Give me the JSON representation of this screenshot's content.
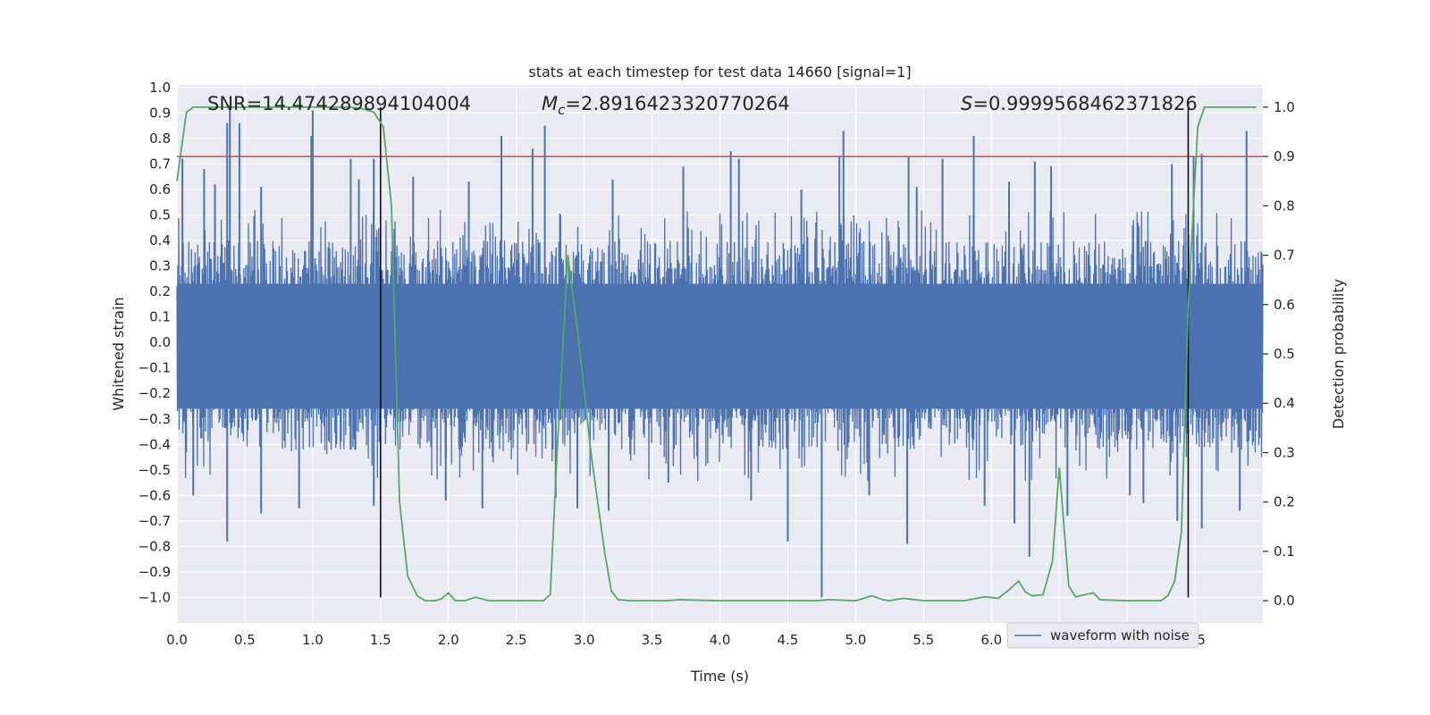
{
  "chart_data": {
    "type": "line",
    "title": "stats at each timestep for test data 14660 [signal=1]",
    "xlabel": "Time (s)",
    "ylabel": "Whitened strain",
    "y2label": "Detection probability",
    "xlim": [
      0.0,
      8.0
    ],
    "ylim": [
      -1.1,
      1.01
    ],
    "y2lim": [
      -0.045,
      1.045
    ],
    "x_ticks": [
      0.0,
      0.5,
      1.0,
      1.5,
      2.0,
      2.5,
      3.0,
      3.5,
      4.0,
      4.5,
      5.0,
      5.5,
      6.0,
      6.5,
      7.0,
      7.5
    ],
    "y_ticks": [
      -1.0,
      -0.9,
      -0.8,
      -0.7,
      -0.6,
      -0.5,
      -0.4,
      -0.3,
      -0.2,
      -0.1,
      0.0,
      0.1,
      0.2,
      0.3,
      0.4,
      0.5,
      0.6,
      0.7,
      0.8,
      0.9,
      1.0
    ],
    "y2_ticks": [
      0.0,
      0.1,
      0.2,
      0.3,
      0.4,
      0.5,
      0.6,
      0.7,
      0.8,
      0.9,
      1.0
    ],
    "grid": true,
    "legend_position": "lower-right",
    "annotations": {
      "snr": "SNR=14.474289894104004",
      "mc_symbol": "M",
      "mc_sub": "c",
      "mc_value": "=2.8916423320770264",
      "s_symbol": "S",
      "s_value": "=0.9999568462371826"
    },
    "waveform": {
      "name": "waveform with noise",
      "color": "#4c72b0",
      "x_range": [
        0.0,
        8.0
      ],
      "typical_envelope": [
        -0.45,
        0.42
      ],
      "spikes": [
        {
          "x": 0.04,
          "y": 0.72
        },
        {
          "x": 0.2,
          "y": 0.68
        },
        {
          "x": 0.28,
          "y": 0.62
        },
        {
          "x": 0.37,
          "y": 0.86
        },
        {
          "x": 0.39,
          "y": 0.93
        },
        {
          "x": 0.46,
          "y": 0.86
        },
        {
          "x": 0.62,
          "y": 0.61
        },
        {
          "x": 0.99,
          "y": 0.81
        },
        {
          "x": 1.0,
          "y": 0.91
        },
        {
          "x": 1.28,
          "y": 0.72
        },
        {
          "x": 1.34,
          "y": 0.64
        },
        {
          "x": 1.45,
          "y": 0.72
        },
        {
          "x": 1.74,
          "y": 0.65
        },
        {
          "x": 2.15,
          "y": 0.63
        },
        {
          "x": 2.39,
          "y": 0.81
        },
        {
          "x": 2.62,
          "y": 0.76
        },
        {
          "x": 2.71,
          "y": 0.85
        },
        {
          "x": 3.21,
          "y": 0.64
        },
        {
          "x": 3.73,
          "y": 0.69
        },
        {
          "x": 4.08,
          "y": 0.75
        },
        {
          "x": 4.14,
          "y": 0.72
        },
        {
          "x": 4.6,
          "y": 0.6
        },
        {
          "x": 4.88,
          "y": 0.73
        },
        {
          "x": 4.91,
          "y": 0.83
        },
        {
          "x": 5.39,
          "y": 0.73
        },
        {
          "x": 5.45,
          "y": 0.61
        },
        {
          "x": 5.64,
          "y": 0.72
        },
        {
          "x": 5.87,
          "y": 0.81
        },
        {
          "x": 6.13,
          "y": 0.63
        },
        {
          "x": 6.32,
          "y": 0.71
        },
        {
          "x": 6.44,
          "y": 0.69
        },
        {
          "x": 7.33,
          "y": 0.7
        },
        {
          "x": 7.49,
          "y": 0.73
        },
        {
          "x": 7.55,
          "y": 0.74
        },
        {
          "x": 7.88,
          "y": 0.83
        },
        {
          "x": 0.12,
          "y": -0.6
        },
        {
          "x": 0.37,
          "y": -0.78
        },
        {
          "x": 0.62,
          "y": -0.67
        },
        {
          "x": 0.9,
          "y": -0.65
        },
        {
          "x": 1.45,
          "y": -0.64
        },
        {
          "x": 1.98,
          "y": -0.62
        },
        {
          "x": 2.25,
          "y": -0.65
        },
        {
          "x": 2.79,
          "y": -0.61
        },
        {
          "x": 2.95,
          "y": -0.65
        },
        {
          "x": 3.18,
          "y": -0.66
        },
        {
          "x": 3.62,
          "y": -0.55
        },
        {
          "x": 4.23,
          "y": -0.62
        },
        {
          "x": 4.5,
          "y": -0.78
        },
        {
          "x": 4.75,
          "y": -1.0
        },
        {
          "x": 5.1,
          "y": -0.6
        },
        {
          "x": 5.38,
          "y": -0.79
        },
        {
          "x": 5.95,
          "y": -0.64
        },
        {
          "x": 6.17,
          "y": -0.71
        },
        {
          "x": 6.28,
          "y": -0.84
        },
        {
          "x": 6.56,
          "y": -0.68
        },
        {
          "x": 7.02,
          "y": -0.6
        },
        {
          "x": 7.12,
          "y": -0.63
        },
        {
          "x": 7.37,
          "y": -0.7
        },
        {
          "x": 7.55,
          "y": -0.73
        },
        {
          "x": 7.83,
          "y": -0.66
        }
      ]
    },
    "detection_probability": {
      "color": "#55a868",
      "x": [
        0.0,
        0.07,
        0.12,
        0.25,
        0.5,
        0.75,
        1.0,
        1.25,
        1.35,
        1.45,
        1.52,
        1.58,
        1.64,
        1.7,
        1.77,
        1.83,
        1.9,
        1.95,
        2.0,
        2.05,
        2.12,
        2.2,
        2.3,
        2.5,
        2.7,
        2.75,
        2.8,
        2.88,
        2.95,
        3.05,
        3.15,
        3.2,
        3.25,
        3.35,
        3.6,
        3.7,
        4.0,
        4.5,
        4.7,
        4.8,
        5.0,
        5.12,
        5.2,
        5.25,
        5.35,
        5.5,
        5.8,
        5.95,
        6.05,
        6.13,
        6.2,
        6.25,
        6.3,
        6.38,
        6.45,
        6.5,
        6.57,
        6.62,
        6.75,
        6.8,
        7.0,
        7.25,
        7.3,
        7.35,
        7.4,
        7.45,
        7.52,
        7.57,
        7.65,
        7.75,
        7.95
      ],
      "y": [
        0.85,
        0.99,
        1.0,
        1.0,
        1.0,
        1.0,
        1.0,
        1.0,
        0.998,
        0.99,
        0.96,
        0.8,
        0.2,
        0.05,
        0.01,
        0.0,
        0.0,
        0.004,
        0.016,
        0.0,
        0.0,
        0.007,
        0.0,
        0.0,
        0.0,
        0.013,
        0.3,
        0.7,
        0.55,
        0.3,
        0.1,
        0.02,
        0.002,
        0.0,
        0.0,
        0.002,
        0.0,
        0.0,
        0.0,
        0.002,
        0.0,
        0.01,
        0.002,
        0.0,
        0.005,
        0.0,
        0.0,
        0.008,
        0.005,
        0.022,
        0.04,
        0.018,
        0.01,
        0.012,
        0.08,
        0.27,
        0.03,
        0.008,
        0.016,
        0.002,
        0.0,
        0.0,
        0.01,
        0.04,
        0.14,
        0.6,
        0.96,
        1.0,
        1.0,
        1.0,
        1.0
      ]
    },
    "threshold_line": {
      "y": 0.9,
      "color": "#c44e52"
    },
    "vertical_markers": [
      1.5,
      7.45
    ]
  }
}
